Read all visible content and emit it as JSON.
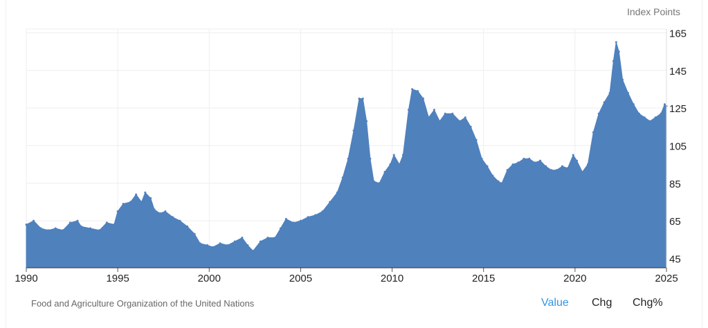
{
  "unit_label": "Index Points",
  "source": "Food and Agriculture Organization of the United Nations",
  "tabs": {
    "value": "Value",
    "chg": "Chg",
    "chg_pct": "Chg%"
  },
  "colors": {
    "fill": "#4f81bd",
    "grid": "#eeeeee",
    "active_tab": "#2f95e6"
  },
  "chart_data": {
    "type": "bar",
    "title": "",
    "xlabel": "",
    "ylabel": "Index Points",
    "y_axis_position": "right",
    "xlim": [
      1990,
      2025
    ],
    "ylim": [
      40,
      167
    ],
    "x_ticks": [
      1990,
      1995,
      2000,
      2005,
      2010,
      2015,
      2020,
      2025
    ],
    "y_ticks": [
      45,
      65,
      85,
      105,
      125,
      145,
      165
    ],
    "grid": true,
    "series": [
      {
        "values": [
          [
            1990.0,
            63
          ],
          [
            1990.4,
            65
          ],
          [
            1990.8,
            61
          ],
          [
            1991.2,
            60
          ],
          [
            1991.6,
            61
          ],
          [
            1992.0,
            60
          ],
          [
            1992.4,
            64
          ],
          [
            1992.8,
            65
          ],
          [
            1993.0,
            62
          ],
          [
            1993.5,
            61
          ],
          [
            1994.0,
            60
          ],
          [
            1994.4,
            64
          ],
          [
            1994.8,
            63
          ],
          [
            1995.0,
            70
          ],
          [
            1995.3,
            74
          ],
          [
            1995.7,
            75
          ],
          [
            1996.0,
            79
          ],
          [
            1996.3,
            75
          ],
          [
            1996.5,
            80
          ],
          [
            1996.8,
            77
          ],
          [
            1997.0,
            71
          ],
          [
            1997.3,
            69
          ],
          [
            1997.6,
            70
          ],
          [
            1998.0,
            67
          ],
          [
            1998.4,
            65
          ],
          [
            1998.8,
            62
          ],
          [
            1999.2,
            58
          ],
          [
            1999.5,
            53
          ],
          [
            1999.9,
            52
          ],
          [
            2000.2,
            51
          ],
          [
            2000.6,
            53
          ],
          [
            2001.0,
            52
          ],
          [
            2001.4,
            54
          ],
          [
            2001.8,
            56
          ],
          [
            2002.1,
            52
          ],
          [
            2002.4,
            49
          ],
          [
            2002.8,
            54
          ],
          [
            2003.2,
            56
          ],
          [
            2003.6,
            56
          ],
          [
            2003.9,
            61
          ],
          [
            2004.2,
            66
          ],
          [
            2004.6,
            64
          ],
          [
            2005.0,
            65
          ],
          [
            2005.4,
            67
          ],
          [
            2005.8,
            68
          ],
          [
            2006.2,
            70
          ],
          [
            2006.6,
            75
          ],
          [
            2007.0,
            80
          ],
          [
            2007.3,
            88
          ],
          [
            2007.6,
            98
          ],
          [
            2007.9,
            113
          ],
          [
            2008.2,
            130
          ],
          [
            2008.4,
            130
          ],
          [
            2008.6,
            118
          ],
          [
            2008.8,
            98
          ],
          [
            2009.0,
            86
          ],
          [
            2009.3,
            85
          ],
          [
            2009.6,
            91
          ],
          [
            2009.9,
            95
          ],
          [
            2010.1,
            100
          ],
          [
            2010.4,
            95
          ],
          [
            2010.6,
            100
          ],
          [
            2010.9,
            124
          ],
          [
            2011.1,
            135
          ],
          [
            2011.4,
            134
          ],
          [
            2011.7,
            130
          ],
          [
            2012.0,
            120
          ],
          [
            2012.3,
            124
          ],
          [
            2012.6,
            118
          ],
          [
            2012.9,
            122
          ],
          [
            2013.3,
            122
          ],
          [
            2013.7,
            118
          ],
          [
            2014.0,
            120
          ],
          [
            2014.3,
            115
          ],
          [
            2014.6,
            108
          ],
          [
            2014.9,
            98
          ],
          [
            2015.2,
            94
          ],
          [
            2015.5,
            89
          ],
          [
            2015.8,
            86
          ],
          [
            2016.0,
            85
          ],
          [
            2016.3,
            92
          ],
          [
            2016.6,
            95
          ],
          [
            2016.9,
            96
          ],
          [
            2017.2,
            98
          ],
          [
            2017.5,
            98
          ],
          [
            2017.8,
            96
          ],
          [
            2018.1,
            97
          ],
          [
            2018.4,
            94
          ],
          [
            2018.7,
            92
          ],
          [
            2019.0,
            92
          ],
          [
            2019.3,
            94
          ],
          [
            2019.6,
            93
          ],
          [
            2019.9,
            100
          ],
          [
            2020.1,
            97
          ],
          [
            2020.4,
            91
          ],
          [
            2020.7,
            95
          ],
          [
            2021.0,
            112
          ],
          [
            2021.3,
            122
          ],
          [
            2021.6,
            128
          ],
          [
            2021.9,
            133
          ],
          [
            2022.1,
            150
          ],
          [
            2022.25,
            160
          ],
          [
            2022.4,
            155
          ],
          [
            2022.6,
            140
          ],
          [
            2022.9,
            133
          ],
          [
            2023.2,
            127
          ],
          [
            2023.5,
            122
          ],
          [
            2023.8,
            120
          ],
          [
            2024.1,
            118
          ],
          [
            2024.4,
            120
          ],
          [
            2024.7,
            122
          ],
          [
            2024.9,
            127
          ],
          [
            2025.0,
            126
          ]
        ]
      }
    ]
  }
}
